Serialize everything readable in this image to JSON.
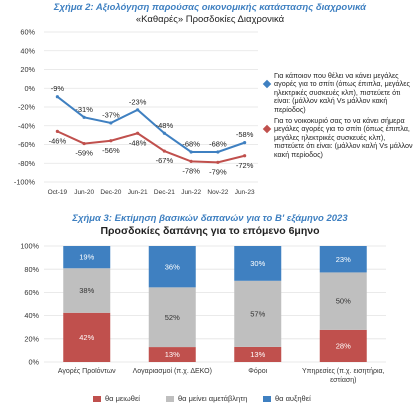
{
  "header1": {
    "title": "Σχήμα 2: Αξιολόγηση παρούσας οικονομικής κατάστασης διαχρονικά",
    "subtitle": "«Καθαρές» Προσδοκίες Διαχρονικά"
  },
  "header2": {
    "title": "Σχήμα 3: Εκτίμηση βασικών δαπανών για το Β' εξάμηνο 2023",
    "subtitle": "Προσδοκίες δαπάνης για το επόμενο 6μηνο"
  },
  "chart_data": [
    {
      "type": "line",
      "ylim": [
        -100,
        60
      ],
      "yticks": [
        "60%",
        "40%",
        "20%",
        "0%",
        "-20%",
        "-40%",
        "-60%",
        "-80%",
        "-100%"
      ],
      "ytick_values": [
        60,
        40,
        20,
        0,
        -20,
        -40,
        -60,
        -80,
        -100
      ],
      "categories": [
        "Oct-19",
        "Jun-20",
        "Dec-20",
        "Jun-21",
        "Dec-21",
        "Jun-22",
        "Nov-22",
        "Jun-23"
      ],
      "grid": true,
      "legend_position": "right",
      "series": [
        {
          "name": "Για κάποιον που θέλει να κάνει μεγάλες αγορές για το σπίτι (όπως έπιπλα, μεγάλες ηλεκτρικές συσκευές κλπ), πιστεύετε ότι είναι: (μάλλον καλή Vs μάλλον κακή περίοδος)",
          "values": [
            -9,
            -31,
            -37,
            -23,
            -48,
            -68,
            -68,
            -58
          ],
          "labels": [
            "-9%",
            "-31%",
            "-37%",
            "-23%",
            "-48%",
            "-68%",
            "-68%",
            "-58%"
          ],
          "color": "#3f80c1"
        },
        {
          "name": "Για το νοικοκυριό σας το να κάνει σήμερα μεγάλες αγορές για το σπίτι (όπως έπιπλα, μεγάλες ηλεκτρικές συσκευές κλπ), πιστεύετε ότι είναι: (μάλλον καλή Vs μάλλον κακή περίοδος)",
          "values": [
            -46,
            -59,
            -56,
            -48,
            -67,
            -78,
            -79,
            -72
          ],
          "labels": [
            "-46%",
            "-59%",
            "-56%",
            "-48%",
            "-67%",
            "-78%",
            "-79%",
            "-72%"
          ],
          "color": "#c0504d"
        }
      ]
    },
    {
      "type": "bar",
      "stacked": true,
      "percent": true,
      "ylim": [
        0,
        100
      ],
      "yticks": [
        "100%",
        "80%",
        "60%",
        "40%",
        "20%",
        "0%"
      ],
      "ytick_values": [
        100,
        80,
        60,
        40,
        20,
        0
      ],
      "categories": [
        [
          "Αγορές Προϊόντων"
        ],
        [
          "Λογαριασμοί (π.χ. ΔΕΚΟ)"
        ],
        [
          "Φόροι"
        ],
        [
          "Υπηρεσίες (π.χ. εισητήρια,",
          "εστίαση)"
        ]
      ],
      "grid": true,
      "legend_position": "bottom",
      "series": [
        {
          "name": "θα μειωθεί",
          "values": [
            42,
            13,
            13,
            28
          ],
          "labels": [
            "42%",
            "13%",
            "13%",
            "28%"
          ],
          "color": "#c0504d"
        },
        {
          "name": "θα μείνει αμετάβλητη",
          "values": [
            38,
            52,
            57,
            50
          ],
          "labels": [
            "38%",
            "52%",
            "57%",
            "50%"
          ],
          "color": "#bfbfbf"
        },
        {
          "name": "θα αυξηθεί",
          "values": [
            19,
            36,
            30,
            23
          ],
          "labels": [
            "19%",
            "36%",
            "30%",
            "23%"
          ],
          "color": "#3f80c1"
        }
      ]
    }
  ]
}
